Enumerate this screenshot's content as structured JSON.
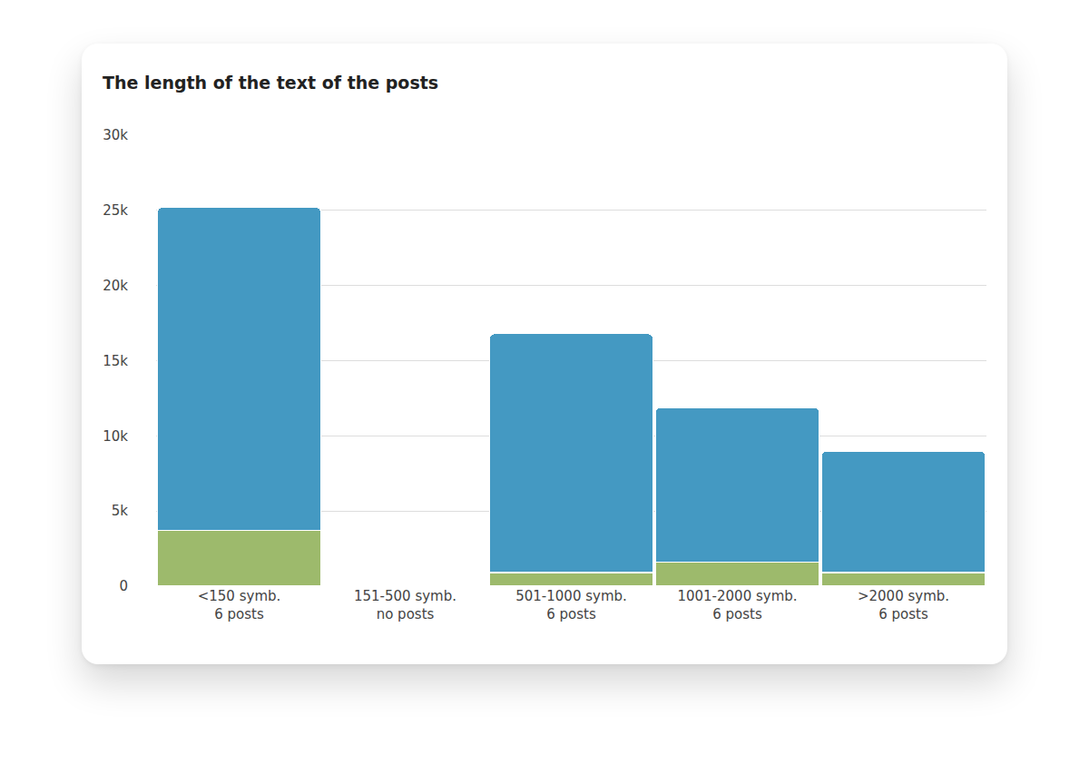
{
  "chart_data": {
    "type": "bar",
    "title": "The length of the text of the posts",
    "categories": [
      "<150 symb.\n6 posts",
      "151-500 symb.\nno posts",
      "501-1000 symb.\n6 posts",
      "1001-2000 symb.\n6 posts",
      ">2000 symb.\n6 posts"
    ],
    "series": [
      {
        "color": "#9dba6c",
        "values": [
          3700,
          null,
          900,
          1600,
          900
        ]
      },
      {
        "color": "#4499c2",
        "values": [
          21500,
          null,
          15900,
          10300,
          8100
        ]
      }
    ],
    "stacked": true,
    "grid": true,
    "ylim": [
      0,
      30000
    ],
    "yticks": [
      0,
      {
        "value": 5000,
        "label": "5k"
      },
      {
        "value": 10000,
        "label": "10k"
      },
      {
        "value": 15000,
        "label": "15k"
      },
      {
        "value": 20000,
        "label": "20k"
      },
      {
        "value": 25000,
        "label": "25k"
      },
      {
        "value": 30000,
        "label": "30k"
      }
    ]
  }
}
